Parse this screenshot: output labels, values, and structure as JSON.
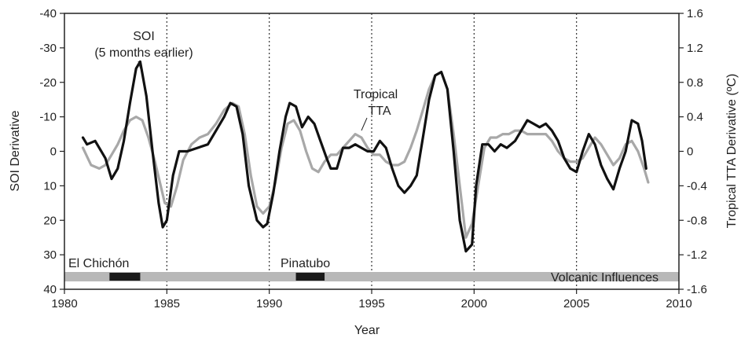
{
  "chart_data": {
    "type": "line",
    "xlabel": "Year",
    "ylabel_left": "SOI Derivative",
    "ylabel_right": "Tropical TTA Derivative (ºC)",
    "xlim": [
      1980,
      2010
    ],
    "ylim_left": [
      40,
      -40
    ],
    "ylim_right": [
      -1.6,
      1.6
    ],
    "left_axis_inverted": true,
    "x_ticks": [
      "1980",
      "1985",
      "1990",
      "1995",
      "2000",
      "2005",
      "2010"
    ],
    "left_ticks": [
      "-40",
      "-30",
      "-20",
      "-10",
      "0",
      "10",
      "20",
      "30",
      "40"
    ],
    "right_ticks": [
      "1.6",
      "1.2",
      "0.8",
      "0.4",
      "0",
      "-0.4",
      "-0.8",
      "-1.2",
      "-1.6"
    ],
    "grid": "vertical dotted lines at 1985, 1990, 1995, 2000, 2005",
    "colors": {
      "soi": "#111111",
      "tta": "#a8a8a8",
      "volcanic_bar": "#b8b8b8",
      "eruption": "#1a1a1a"
    },
    "annotations": {
      "soi_label": "SOI",
      "soi_sublabel": "(5 months earlier)",
      "tta_label_1": "Tropical",
      "tta_label_2": "TTA",
      "el_chichon": "El Chichón",
      "pinatubo": "Pinatubo",
      "volcanic": "Volcanic Influences"
    },
    "volcanic_periods": [
      {
        "name": "El Chichón",
        "start": 1982.2,
        "end": 1983.7
      },
      {
        "name": "Pinatubo",
        "start": 1991.3,
        "end": 1992.7
      }
    ],
    "series": [
      {
        "name": "SOI",
        "axis": "left",
        "x": [
          1980.9,
          1981.1,
          1981.5,
          1982.0,
          1982.3,
          1982.6,
          1982.9,
          1983.2,
          1983.5,
          1983.7,
          1984.0,
          1984.3,
          1984.6,
          1984.8,
          1985.0,
          1985.3,
          1985.6,
          1986.0,
          1986.5,
          1987.0,
          1987.4,
          1987.8,
          1988.1,
          1988.4,
          1988.7,
          1989.0,
          1989.4,
          1989.7,
          1989.9,
          1990.2,
          1990.5,
          1990.8,
          1991.0,
          1991.3,
          1991.6,
          1991.9,
          1992.2,
          1992.5,
          1992.8,
          1993.0,
          1993.3,
          1993.6,
          1993.9,
          1994.2,
          1994.5,
          1994.8,
          1995.1,
          1995.4,
          1995.7,
          1996.0,
          1996.3,
          1996.6,
          1996.9,
          1997.2,
          1997.5,
          1997.8,
          1998.1,
          1998.4,
          1998.7,
          1999.0,
          1999.3,
          1999.6,
          1999.9,
          2000.1,
          2000.4,
          2000.7,
          2001.0,
          2001.3,
          2001.6,
          2002.0,
          2002.3,
          2002.6,
          2002.9,
          2003.2,
          2003.5,
          2003.8,
          2004.1,
          2004.4,
          2004.7,
          2005.0,
          2005.3,
          2005.6,
          2005.9,
          2006.2,
          2006.5,
          2006.8,
          2007.1,
          2007.4,
          2007.7,
          2008.0,
          2008.2,
          2008.4
        ],
        "values": [
          -4,
          -2,
          -3,
          2,
          8,
          5,
          -3,
          -14,
          -24,
          -26,
          -16,
          0,
          15,
          22,
          20,
          7,
          0,
          0,
          -1,
          -2,
          -6,
          -10,
          -14,
          -13,
          -5,
          10,
          20,
          22,
          21,
          12,
          0,
          -10,
          -14,
          -13,
          -7,
          -10,
          -8,
          -3,
          2,
          5,
          5,
          -1,
          -1,
          -2,
          -1,
          0,
          0,
          -3,
          -1,
          5,
          10,
          12,
          10,
          7,
          -4,
          -15,
          -22,
          -23,
          -18,
          0,
          20,
          29,
          27,
          10,
          -2,
          -2,
          0,
          -2,
          -1,
          -3,
          -6,
          -9,
          -8,
          -7,
          -8,
          -6,
          -3,
          2,
          5,
          6,
          0,
          -5,
          -2,
          4,
          8,
          11,
          5,
          0,
          -9,
          -8,
          -3,
          5
        ]
      },
      {
        "name": "Tropical TTA",
        "axis": "right",
        "x": [
          1980.9,
          1981.3,
          1981.7,
          1982.0,
          1982.3,
          1982.6,
          1982.9,
          1983.2,
          1983.5,
          1983.8,
          1984.1,
          1984.4,
          1984.7,
          1984.9,
          1985.2,
          1985.5,
          1985.8,
          1986.2,
          1986.6,
          1987.0,
          1987.4,
          1987.8,
          1988.2,
          1988.5,
          1988.8,
          1989.1,
          1989.4,
          1989.7,
          1990.0,
          1990.3,
          1990.6,
          1990.9,
          1991.2,
          1991.5,
          1991.8,
          1992.1,
          1992.4,
          1992.7,
          1993.0,
          1993.3,
          1993.6,
          1993.9,
          1994.2,
          1994.5,
          1994.8,
          1995.1,
          1995.4,
          1995.7,
          1996.0,
          1996.3,
          1996.6,
          1996.9,
          1997.2,
          1997.5,
          1997.8,
          1998.1,
          1998.4,
          1998.7,
          1999.0,
          1999.3,
          1999.6,
          1999.9,
          2000.2,
          2000.5,
          2000.8,
          2001.1,
          2001.4,
          2001.7,
          2002.0,
          2002.3,
          2002.6,
          2002.9,
          2003.2,
          2003.5,
          2003.8,
          2004.1,
          2004.4,
          2004.7,
          2005.0,
          2005.3,
          2005.6,
          2005.9,
          2006.2,
          2006.5,
          2006.8,
          2007.1,
          2007.4,
          2007.7,
          2008.0,
          2008.3,
          2008.5
        ],
        "values": [
          0.04,
          -0.16,
          -0.2,
          -0.16,
          -0.04,
          0.08,
          0.24,
          0.36,
          0.4,
          0.36,
          0.16,
          -0.1,
          -0.4,
          -0.6,
          -0.64,
          -0.4,
          -0.1,
          0.08,
          0.16,
          0.2,
          0.32,
          0.48,
          0.56,
          0.52,
          0.2,
          -0.28,
          -0.64,
          -0.72,
          -0.64,
          -0.36,
          0.04,
          0.32,
          0.36,
          0.24,
          0.0,
          -0.2,
          -0.24,
          -0.12,
          -0.04,
          -0.04,
          0.04,
          0.12,
          0.2,
          0.16,
          0.04,
          -0.04,
          -0.04,
          -0.12,
          -0.16,
          -0.16,
          -0.12,
          0.04,
          0.24,
          0.48,
          0.72,
          0.88,
          0.92,
          0.72,
          0.2,
          -0.4,
          -1.0,
          -0.84,
          -0.4,
          0.04,
          0.16,
          0.16,
          0.2,
          0.2,
          0.24,
          0.24,
          0.2,
          0.2,
          0.2,
          0.2,
          0.12,
          0.0,
          -0.08,
          -0.12,
          -0.12,
          -0.08,
          0.04,
          0.16,
          0.08,
          -0.04,
          -0.16,
          -0.08,
          0.08,
          0.12,
          0.0,
          -0.2,
          -0.36
        ]
      }
    ]
  }
}
